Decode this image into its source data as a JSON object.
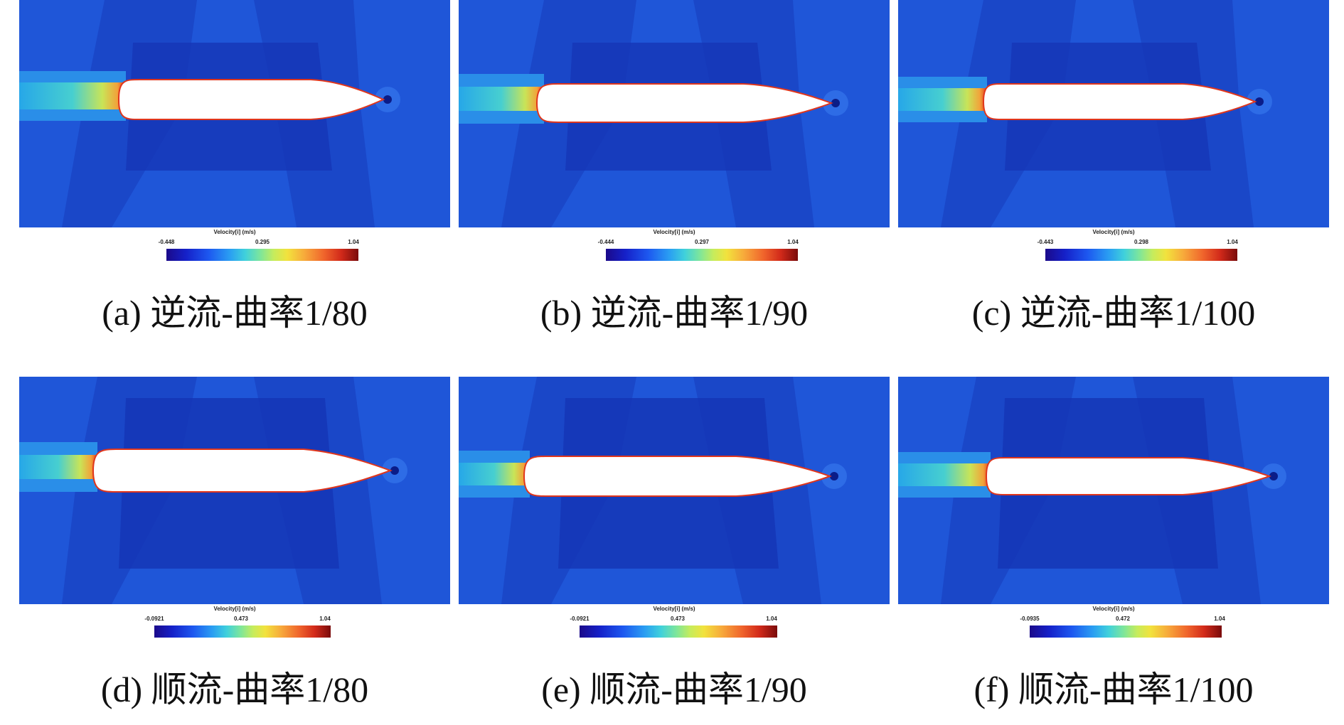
{
  "colors": {
    "field_base": "#1f56d8",
    "field_mid": "#1a47c8",
    "field_deep": "#1536b6",
    "hull": "#ffffff"
  },
  "panels": [
    {
      "legend": {
        "title": "Velocity[i] (m/s)",
        "min": "-0.448",
        "mid": "0.295",
        "max": "1.04"
      },
      "caption": "(a) 逆流-曲率1/80"
    },
    {
      "legend": {
        "title": "Velocity[i] (m/s)",
        "min": "-0.444",
        "mid": "0.297",
        "max": "1.04"
      },
      "caption": "(b) 逆流-曲率1/90"
    },
    {
      "legend": {
        "title": "Velocity[i] (m/s)",
        "min": "-0.443",
        "mid": "0.298",
        "max": "1.04"
      },
      "caption": "(c) 逆流-曲率1/100"
    },
    {
      "legend": {
        "title": "Velocity[i] (m/s)",
        "min": "-0.0921",
        "mid": "0.473",
        "max": "1.04"
      },
      "caption": "(d) 顺流-曲率1/80"
    },
    {
      "legend": {
        "title": "Velocity[i] (m/s)",
        "min": "-0.0921",
        "mid": "0.473",
        "max": "1.04"
      },
      "caption": "(e) 顺流-曲率1/90"
    },
    {
      "legend": {
        "title": "Velocity[i] (m/s)",
        "min": "-0.0935",
        "mid": "0.472",
        "max": "1.04"
      },
      "caption": "(f) 顺流-曲率1/100"
    }
  ]
}
